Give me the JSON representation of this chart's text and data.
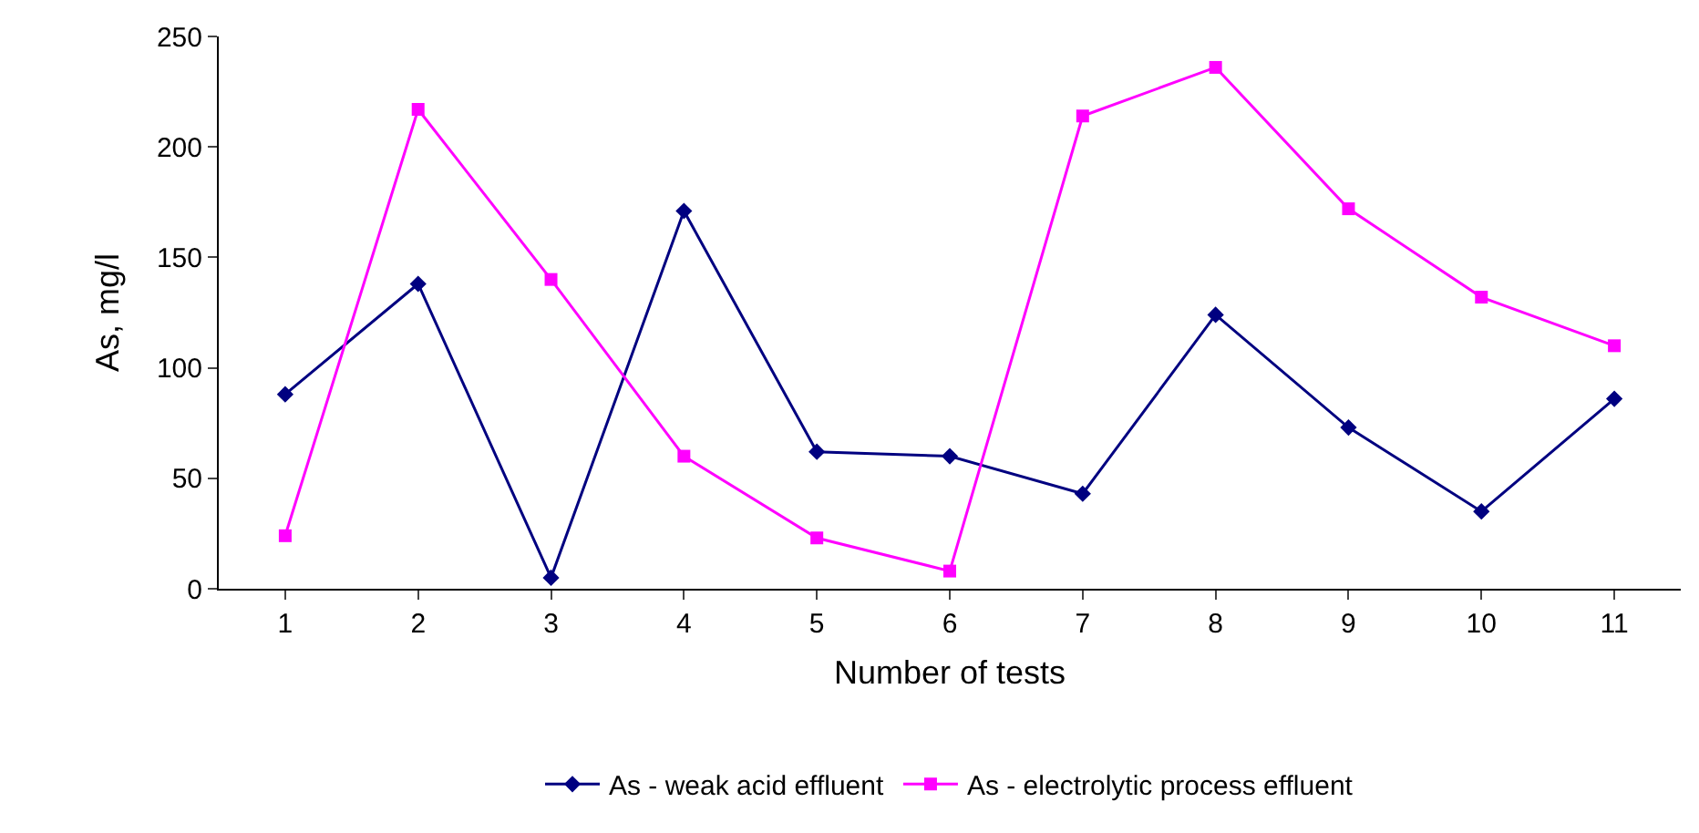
{
  "chart_data": {
    "type": "line",
    "xlabel": "Number of tests",
    "ylabel": "As, mg/l",
    "categories": [
      "1",
      "2",
      "3",
      "4",
      "5",
      "6",
      "7",
      "8",
      "9",
      "10",
      "11"
    ],
    "series": [
      {
        "name": "As - weak acid effluent",
        "color": "#000080",
        "marker": "diamond",
        "values": [
          88,
          138,
          5,
          171,
          62,
          60,
          43,
          124,
          73,
          35,
          86
        ]
      },
      {
        "name": "As - electrolytic process effluent",
        "color": "#ff00ff",
        "marker": "square",
        "values": [
          24,
          217,
          140,
          60,
          23,
          8,
          214,
          236,
          172,
          132,
          110
        ]
      }
    ],
    "ylim": [
      0,
      250
    ],
    "yticks": [
      0,
      50,
      100,
      150,
      200,
      250
    ],
    "grid": false,
    "legend": "bottom",
    "line_style": "solid"
  }
}
